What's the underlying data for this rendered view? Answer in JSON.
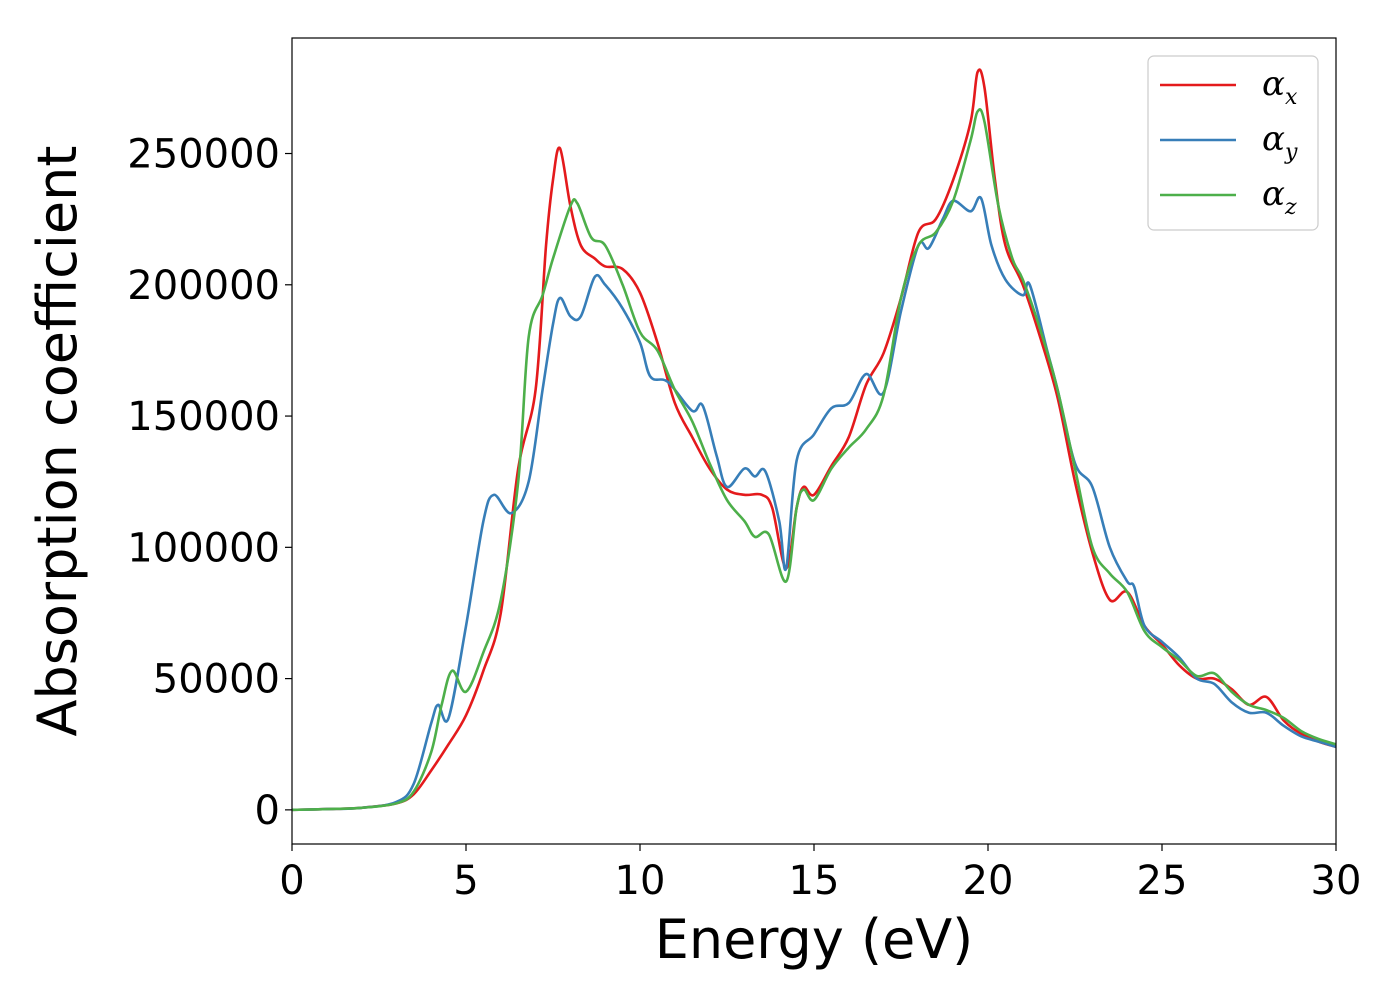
{
  "chart_data": {
    "type": "line",
    "title": "",
    "xlabel": "Energy (eV)",
    "ylabel": "Absorption coefficient",
    "xlim": [
      0,
      30
    ],
    "ylim": [
      -13000,
      294000
    ],
    "xticks": [
      0,
      5,
      10,
      15,
      20,
      25,
      30
    ],
    "xtick_labels": [
      "0",
      "5",
      "10",
      "15",
      "20",
      "25",
      "30"
    ],
    "yticks": [
      0,
      50000,
      100000,
      150000,
      200000,
      250000
    ],
    "ytick_labels": [
      "0",
      "50000",
      "100000",
      "150000",
      "200000",
      "250000"
    ],
    "grid": false,
    "legend_position": "top-right",
    "series": [
      {
        "name": "α_x",
        "name_base": "α",
        "name_sub": "x",
        "color": "#e41a1c",
        "points": [
          [
            0,
            0
          ],
          [
            1,
            300
          ],
          [
            2,
            800
          ],
          [
            3,
            2500
          ],
          [
            3.5,
            6000
          ],
          [
            4,
            15000
          ],
          [
            4.5,
            25000
          ],
          [
            5,
            36000
          ],
          [
            5.5,
            53000
          ],
          [
            6,
            75000
          ],
          [
            6.5,
            130000
          ],
          [
            7,
            160000
          ],
          [
            7.3,
            215000
          ],
          [
            7.5,
            240000
          ],
          [
            7.7,
            252000
          ],
          [
            8,
            230000
          ],
          [
            8.3,
            215000
          ],
          [
            8.7,
            210000
          ],
          [
            9,
            207000
          ],
          [
            9.5,
            206000
          ],
          [
            10,
            197000
          ],
          [
            10.5,
            178000
          ],
          [
            11,
            155000
          ],
          [
            11.5,
            142000
          ],
          [
            12,
            130000
          ],
          [
            12.5,
            122000
          ],
          [
            13,
            120000
          ],
          [
            13.5,
            120000
          ],
          [
            13.8,
            115000
          ],
          [
            14.2,
            92000
          ],
          [
            14.5,
            115000
          ],
          [
            14.7,
            123000
          ],
          [
            15,
            120000
          ],
          [
            15.5,
            131000
          ],
          [
            16,
            142000
          ],
          [
            16.5,
            162000
          ],
          [
            17,
            174000
          ],
          [
            17.5,
            195000
          ],
          [
            18,
            220000
          ],
          [
            18.5,
            225000
          ],
          [
            19,
            240000
          ],
          [
            19.5,
            262000
          ],
          [
            19.7,
            281000
          ],
          [
            19.9,
            275000
          ],
          [
            20.2,
            240000
          ],
          [
            20.5,
            215000
          ],
          [
            21,
            200000
          ],
          [
            21.5,
            180000
          ],
          [
            22,
            157000
          ],
          [
            22.5,
            125000
          ],
          [
            23,
            98000
          ],
          [
            23.5,
            80000
          ],
          [
            24,
            83000
          ],
          [
            24.5,
            70000
          ],
          [
            25,
            63000
          ],
          [
            25.5,
            55000
          ],
          [
            26,
            50000
          ],
          [
            26.5,
            50000
          ],
          [
            27,
            46000
          ],
          [
            27.5,
            40000
          ],
          [
            28,
            43000
          ],
          [
            28.5,
            34000
          ],
          [
            29,
            29000
          ],
          [
            29.5,
            26000
          ],
          [
            30,
            24000
          ]
        ]
      },
      {
        "name": "α_y",
        "name_base": "α",
        "name_sub": "y",
        "color": "#377eb8",
        "points": [
          [
            0,
            0
          ],
          [
            1,
            300
          ],
          [
            2,
            800
          ],
          [
            3,
            3000
          ],
          [
            3.5,
            10000
          ],
          [
            4,
            33000
          ],
          [
            4.2,
            40000
          ],
          [
            4.5,
            35000
          ],
          [
            5,
            70000
          ],
          [
            5.5,
            110000
          ],
          [
            5.8,
            120000
          ],
          [
            6.3,
            113000
          ],
          [
            6.8,
            125000
          ],
          [
            7.2,
            160000
          ],
          [
            7.5,
            185000
          ],
          [
            7.7,
            195000
          ],
          [
            8,
            188000
          ],
          [
            8.3,
            188000
          ],
          [
            8.7,
            203000
          ],
          [
            9,
            200000
          ],
          [
            9.5,
            191000
          ],
          [
            10,
            178000
          ],
          [
            10.3,
            165000
          ],
          [
            10.8,
            163000
          ],
          [
            11.5,
            152000
          ],
          [
            11.8,
            154000
          ],
          [
            12.2,
            135000
          ],
          [
            12.5,
            123000
          ],
          [
            13,
            130000
          ],
          [
            13.3,
            127000
          ],
          [
            13.6,
            129000
          ],
          [
            14,
            110000
          ],
          [
            14.2,
            92000
          ],
          [
            14.5,
            133000
          ],
          [
            15,
            143000
          ],
          [
            15.5,
            153000
          ],
          [
            16,
            155000
          ],
          [
            16.5,
            166000
          ],
          [
            17,
            159000
          ],
          [
            17.5,
            190000
          ],
          [
            18,
            215000
          ],
          [
            18.3,
            214000
          ],
          [
            18.7,
            225000
          ],
          [
            19,
            232000
          ],
          [
            19.5,
            228000
          ],
          [
            19.8,
            233000
          ],
          [
            20.1,
            215000
          ],
          [
            20.5,
            202000
          ],
          [
            21,
            196000
          ],
          [
            21.2,
            200000
          ],
          [
            21.7,
            175000
          ],
          [
            22,
            160000
          ],
          [
            22.5,
            132000
          ],
          [
            23,
            123000
          ],
          [
            23.5,
            100000
          ],
          [
            24,
            87000
          ],
          [
            24.2,
            85000
          ],
          [
            24.5,
            70000
          ],
          [
            25,
            64000
          ],
          [
            25.5,
            58000
          ],
          [
            26,
            50000
          ],
          [
            26.5,
            48000
          ],
          [
            27,
            41000
          ],
          [
            27.5,
            37000
          ],
          [
            28,
            37000
          ],
          [
            28.5,
            32000
          ],
          [
            29,
            28000
          ],
          [
            29.5,
            26000
          ],
          [
            30,
            24000
          ]
        ]
      },
      {
        "name": "α_z",
        "name_base": "α",
        "name_sub": "z",
        "color": "#4daf4a",
        "points": [
          [
            0,
            0
          ],
          [
            1,
            300
          ],
          [
            2,
            800
          ],
          [
            3,
            2500
          ],
          [
            3.5,
            7000
          ],
          [
            4,
            22000
          ],
          [
            4.3,
            40000
          ],
          [
            4.6,
            53000
          ],
          [
            5,
            45000
          ],
          [
            5.5,
            60000
          ],
          [
            6,
            80000
          ],
          [
            6.5,
            125000
          ],
          [
            6.8,
            180000
          ],
          [
            7.2,
            196000
          ],
          [
            7.5,
            210000
          ],
          [
            8,
            230000
          ],
          [
            8.2,
            231000
          ],
          [
            8.6,
            218000
          ],
          [
            9,
            215000
          ],
          [
            9.5,
            200000
          ],
          [
            10,
            182000
          ],
          [
            10.5,
            175000
          ],
          [
            11,
            160000
          ],
          [
            11.5,
            148000
          ],
          [
            12,
            132000
          ],
          [
            12.5,
            118000
          ],
          [
            13,
            110000
          ],
          [
            13.3,
            104000
          ],
          [
            13.7,
            105000
          ],
          [
            14.2,
            87000
          ],
          [
            14.5,
            115000
          ],
          [
            14.7,
            122000
          ],
          [
            15,
            118000
          ],
          [
            15.5,
            130000
          ],
          [
            16,
            138000
          ],
          [
            16.5,
            145000
          ],
          [
            17,
            158000
          ],
          [
            17.5,
            195000
          ],
          [
            18,
            215000
          ],
          [
            18.5,
            220000
          ],
          [
            19,
            232000
          ],
          [
            19.5,
            255000
          ],
          [
            19.7,
            266000
          ],
          [
            19.9,
            262000
          ],
          [
            20.3,
            230000
          ],
          [
            20.7,
            210000
          ],
          [
            21,
            202000
          ],
          [
            21.5,
            183000
          ],
          [
            22,
            160000
          ],
          [
            22.5,
            130000
          ],
          [
            23,
            100000
          ],
          [
            23.5,
            90000
          ],
          [
            24,
            83000
          ],
          [
            24.5,
            68000
          ],
          [
            25,
            62000
          ],
          [
            25.5,
            57000
          ],
          [
            26,
            51000
          ],
          [
            26.5,
            52000
          ],
          [
            27,
            45000
          ],
          [
            27.5,
            40000
          ],
          [
            28,
            38000
          ],
          [
            28.5,
            35000
          ],
          [
            29,
            30000
          ],
          [
            29.5,
            27000
          ],
          [
            30,
            25000
          ]
        ]
      }
    ]
  }
}
